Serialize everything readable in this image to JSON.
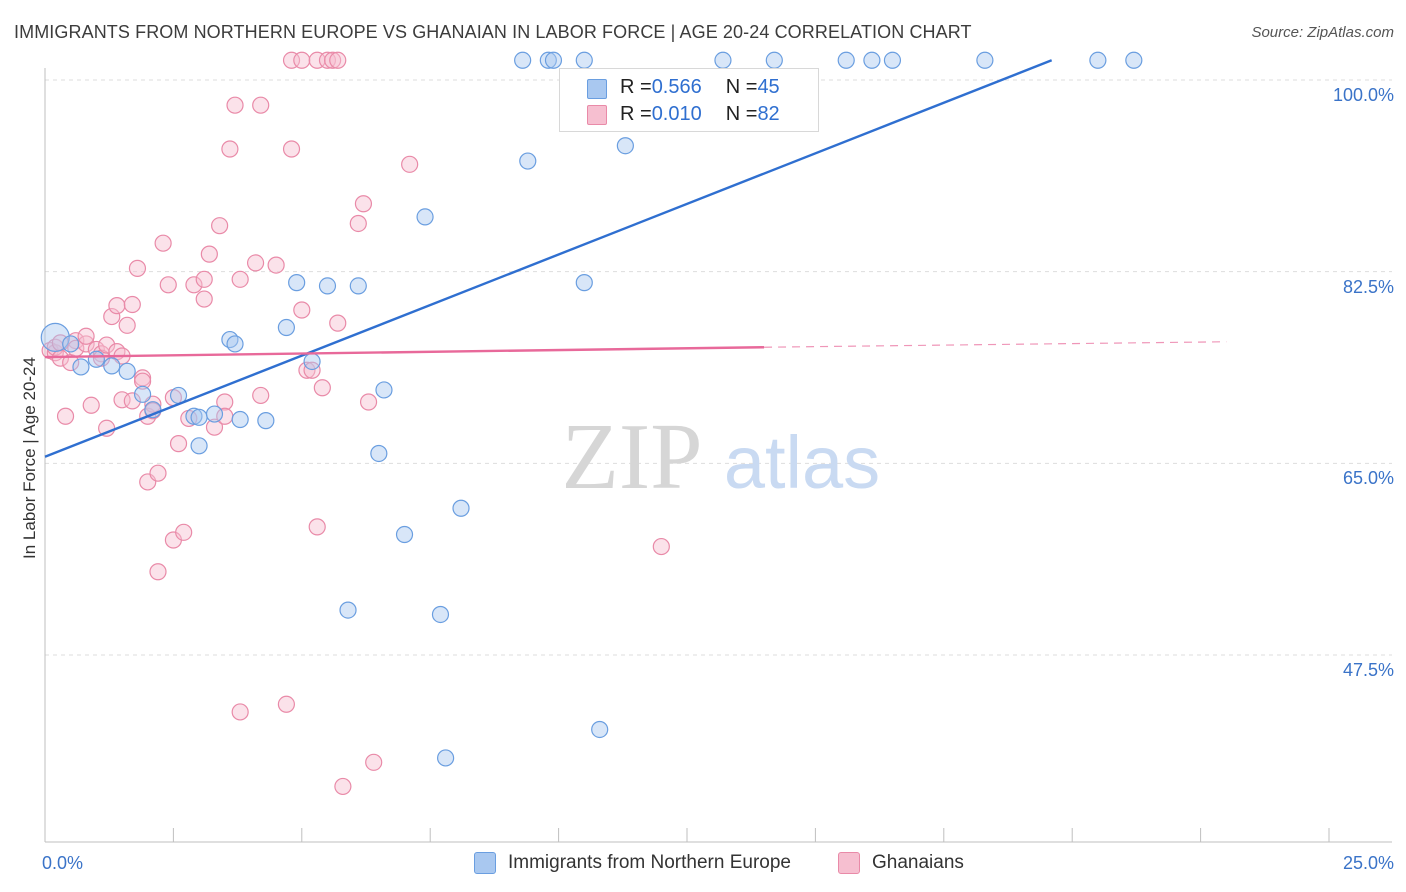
{
  "title": "IMMIGRANTS FROM NORTHERN EUROPE VS GHANAIAN IN LABOR FORCE | AGE 20-24 CORRELATION CHART",
  "source": "Source: ZipAtlas.com",
  "colors": {
    "blue_fill": "#a9c8f0",
    "blue_stroke": "#6a9ee0",
    "blue_line": "#2f6fd0",
    "pink_fill": "#f6bfd0",
    "pink_stroke": "#e98aa8",
    "pink_line": "#e8699a",
    "axis_text": "#3a73c8",
    "grid": "#dddddd"
  },
  "legend": {
    "blue": {
      "r_label": "R = ",
      "r_value": "0.566",
      "n_label": "N = ",
      "n_value": "45"
    },
    "pink": {
      "r_label": "R = ",
      "r_value": "0.010",
      "n_label": "N = ",
      "n_value": "82"
    }
  },
  "chart_data": {
    "type": "scatter",
    "title": "IMMIGRANTS FROM NORTHERN EUROPE VS GHANAIAN IN LABOR FORCE | AGE 20-24 CORRELATION CHART",
    "xlabel": "",
    "ylabel": "In Labor Force | Age 20-24",
    "xlim": [
      0,
      25
    ],
    "ylim": [
      30,
      103
    ],
    "x_tick_labels": [
      "0.0%",
      "25.0%"
    ],
    "y_ticks": [
      47.5,
      65.0,
      82.5,
      100.0
    ],
    "y_tick_labels": [
      "47.5%",
      "65.0%",
      "82.5%",
      "100.0%"
    ],
    "watermark": {
      "part1": "ZIP",
      "part2": "atlas"
    },
    "series": [
      {
        "name": "Immigrants from Northern Europe",
        "color": "#a9c8f0",
        "r": 0.566,
        "n": 45,
        "trend": {
          "x0": 0.0,
          "y0": 65.6,
          "x1": 19.6,
          "y1": 101.8
        },
        "points": [
          {
            "x": 0.2,
            "y": 76.5,
            "big": true
          },
          {
            "x": 0.5,
            "y": 75.9
          },
          {
            "x": 0.7,
            "y": 73.8
          },
          {
            "x": 1.0,
            "y": 74.5
          },
          {
            "x": 1.3,
            "y": 73.9
          },
          {
            "x": 1.6,
            "y": 73.4
          },
          {
            "x": 1.9,
            "y": 71.3
          },
          {
            "x": 2.1,
            "y": 69.9
          },
          {
            "x": 2.6,
            "y": 71.2
          },
          {
            "x": 2.9,
            "y": 69.3
          },
          {
            "x": 3.0,
            "y": 69.2
          },
          {
            "x": 3.0,
            "y": 66.6
          },
          {
            "x": 3.3,
            "y": 69.5
          },
          {
            "x": 3.6,
            "y": 76.3
          },
          {
            "x": 3.8,
            "y": 69.0
          },
          {
            "x": 3.7,
            "y": 75.9
          },
          {
            "x": 4.3,
            "y": 68.9
          },
          {
            "x": 4.7,
            "y": 77.4
          },
          {
            "x": 4.9,
            "y": 81.5
          },
          {
            "x": 5.2,
            "y": 74.3
          },
          {
            "x": 5.5,
            "y": 81.2
          },
          {
            "x": 5.9,
            "y": 51.6
          },
          {
            "x": 6.1,
            "y": 81.2
          },
          {
            "x": 6.5,
            "y": 65.9
          },
          {
            "x": 6.6,
            "y": 71.7
          },
          {
            "x": 7.0,
            "y": 58.5
          },
          {
            "x": 7.4,
            "y": 87.5
          },
          {
            "x": 7.7,
            "y": 51.2
          },
          {
            "x": 7.8,
            "y": 38.1
          },
          {
            "x": 8.1,
            "y": 60.9
          },
          {
            "x": 9.3,
            "y": 101.8
          },
          {
            "x": 9.4,
            "y": 92.6
          },
          {
            "x": 9.8,
            "y": 101.8
          },
          {
            "x": 9.9,
            "y": 101.8
          },
          {
            "x": 10.5,
            "y": 101.8
          },
          {
            "x": 10.5,
            "y": 81.5
          },
          {
            "x": 10.8,
            "y": 40.7
          },
          {
            "x": 11.3,
            "y": 94.0
          },
          {
            "x": 13.2,
            "y": 101.8
          },
          {
            "x": 14.2,
            "y": 101.8
          },
          {
            "x": 15.6,
            "y": 101.8
          },
          {
            "x": 16.1,
            "y": 101.8
          },
          {
            "x": 16.5,
            "y": 101.8
          },
          {
            "x": 18.3,
            "y": 101.8
          },
          {
            "x": 20.5,
            "y": 101.8
          },
          {
            "x": 21.2,
            "y": 101.8
          }
        ]
      },
      {
        "name": "Ghanaians",
        "color": "#f6bfd0",
        "r": 0.01,
        "n": 82,
        "trend": {
          "x0": 0.0,
          "y0": 74.7,
          "x1": 14.0,
          "y1": 75.6,
          "dash_to_x": 23.0,
          "dash_to_y": 76.1
        },
        "points": [
          {
            "x": 0.1,
            "y": 75.3
          },
          {
            "x": 0.2,
            "y": 75.1
          },
          {
            "x": 0.2,
            "y": 75.6
          },
          {
            "x": 0.3,
            "y": 76.0
          },
          {
            "x": 0.3,
            "y": 74.6
          },
          {
            "x": 0.4,
            "y": 69.3
          },
          {
            "x": 0.5,
            "y": 74.2
          },
          {
            "x": 0.6,
            "y": 76.2
          },
          {
            "x": 0.6,
            "y": 75.5
          },
          {
            "x": 0.8,
            "y": 75.9
          },
          {
            "x": 0.8,
            "y": 76.6
          },
          {
            "x": 0.9,
            "y": 70.3
          },
          {
            "x": 1.0,
            "y": 75.4
          },
          {
            "x": 1.1,
            "y": 75.0
          },
          {
            "x": 1.1,
            "y": 74.6
          },
          {
            "x": 1.2,
            "y": 75.8
          },
          {
            "x": 1.2,
            "y": 68.2
          },
          {
            "x": 1.3,
            "y": 78.4
          },
          {
            "x": 1.4,
            "y": 79.4
          },
          {
            "x": 1.4,
            "y": 75.2
          },
          {
            "x": 1.5,
            "y": 74.8
          },
          {
            "x": 1.5,
            "y": 70.8
          },
          {
            "x": 1.6,
            "y": 77.6
          },
          {
            "x": 1.7,
            "y": 79.5
          },
          {
            "x": 1.7,
            "y": 70.7
          },
          {
            "x": 1.8,
            "y": 82.8
          },
          {
            "x": 1.9,
            "y": 72.8
          },
          {
            "x": 1.9,
            "y": 72.5
          },
          {
            "x": 2.0,
            "y": 69.3
          },
          {
            "x": 2.0,
            "y": 63.3
          },
          {
            "x": 2.1,
            "y": 70.4
          },
          {
            "x": 2.1,
            "y": 69.8
          },
          {
            "x": 2.2,
            "y": 64.1
          },
          {
            "x": 2.2,
            "y": 55.1
          },
          {
            "x": 2.3,
            "y": 85.1
          },
          {
            "x": 2.4,
            "y": 81.3
          },
          {
            "x": 2.5,
            "y": 71.0
          },
          {
            "x": 2.5,
            "y": 58.0
          },
          {
            "x": 2.6,
            "y": 66.8
          },
          {
            "x": 2.7,
            "y": 58.7
          },
          {
            "x": 2.8,
            "y": 69.1
          },
          {
            "x": 2.9,
            "y": 81.3
          },
          {
            "x": 3.1,
            "y": 81.8
          },
          {
            "x": 3.1,
            "y": 80.0
          },
          {
            "x": 3.2,
            "y": 84.1
          },
          {
            "x": 3.3,
            "y": 68.3
          },
          {
            "x": 3.4,
            "y": 86.7
          },
          {
            "x": 3.5,
            "y": 70.6
          },
          {
            "x": 3.5,
            "y": 69.3
          },
          {
            "x": 3.6,
            "y": 93.7
          },
          {
            "x": 3.7,
            "y": 97.7
          },
          {
            "x": 3.8,
            "y": 81.8
          },
          {
            "x": 3.8,
            "y": 42.3
          },
          {
            "x": 4.1,
            "y": 83.3
          },
          {
            "x": 4.2,
            "y": 97.7
          },
          {
            "x": 4.2,
            "y": 71.2
          },
          {
            "x": 4.5,
            "y": 83.1
          },
          {
            "x": 4.7,
            "y": 43.0
          },
          {
            "x": 4.8,
            "y": 93.7
          },
          {
            "x": 4.8,
            "y": 101.8
          },
          {
            "x": 5.0,
            "y": 101.8
          },
          {
            "x": 5.0,
            "y": 79.0
          },
          {
            "x": 5.1,
            "y": 73.5
          },
          {
            "x": 5.2,
            "y": 73.5
          },
          {
            "x": 5.3,
            "y": 101.8
          },
          {
            "x": 5.3,
            "y": 59.2
          },
          {
            "x": 5.4,
            "y": 71.9
          },
          {
            "x": 5.5,
            "y": 101.8
          },
          {
            "x": 5.6,
            "y": 101.8
          },
          {
            "x": 5.7,
            "y": 101.8
          },
          {
            "x": 5.7,
            "y": 77.8
          },
          {
            "x": 5.8,
            "y": 35.5
          },
          {
            "x": 6.1,
            "y": 86.9
          },
          {
            "x": 6.2,
            "y": 88.7
          },
          {
            "x": 6.3,
            "y": 70.6
          },
          {
            "x": 6.4,
            "y": 37.7
          },
          {
            "x": 7.1,
            "y": 92.3
          },
          {
            "x": 12.0,
            "y": 57.4
          }
        ]
      }
    ]
  }
}
